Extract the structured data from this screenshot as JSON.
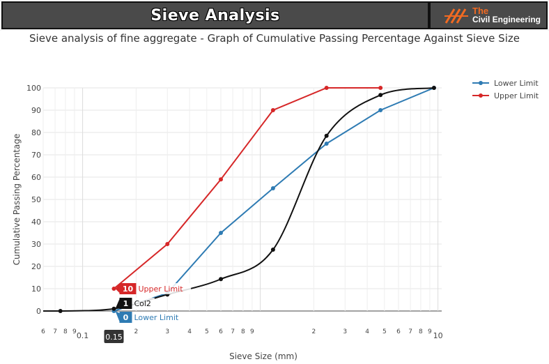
{
  "banner": {
    "title": "Sieve Analysis",
    "logo_the": "The",
    "logo_name": "Civil Engineering",
    "logo_accent": "#f26a21"
  },
  "chart_data": {
    "type": "line",
    "title": "Sieve analysis of fine aggregate - Graph of Cumulative Passing Percentage Against Sieve Size",
    "xlabel": "Sieve Size (mm)",
    "ylabel": "Cumulative Passing Percentage",
    "xscale": "log",
    "xlim": [
      0.06,
      10.5
    ],
    "ylim": [
      0,
      100
    ],
    "y_ticks": [
      0,
      10,
      20,
      30,
      40,
      50,
      60,
      70,
      80,
      90,
      100
    ],
    "x_tick_labels": [
      {
        "value": 0.06,
        "label": "6"
      },
      {
        "value": 0.07,
        "label": "7"
      },
      {
        "value": 0.08,
        "label": "8"
      },
      {
        "value": 0.09,
        "label": "9"
      },
      {
        "value": 0.1,
        "label": "0.1"
      },
      {
        "value": 0.2,
        "label": "2"
      },
      {
        "value": 0.3,
        "label": "3"
      },
      {
        "value": 0.4,
        "label": "4"
      },
      {
        "value": 0.5,
        "label": "5"
      },
      {
        "value": 0.6,
        "label": "6"
      },
      {
        "value": 0.7,
        "label": "7"
      },
      {
        "value": 0.8,
        "label": "8"
      },
      {
        "value": 0.9,
        "label": "9"
      },
      {
        "value": 2,
        "label": "2"
      },
      {
        "value": 3,
        "label": "3"
      },
      {
        "value": 4,
        "label": "4"
      },
      {
        "value": 5,
        "label": "5"
      },
      {
        "value": 6,
        "label": "6"
      },
      {
        "value": 7,
        "label": "7"
      },
      {
        "value": 8,
        "label": "8"
      },
      {
        "value": 9,
        "label": "9"
      },
      {
        "value": 10,
        "label": "10"
      }
    ],
    "grid": true,
    "legend_position": "top-right",
    "series": [
      {
        "name": "Lower Limit",
        "color": "#2e7bb3",
        "smooth": false,
        "show_in_legend": true,
        "points": [
          [
            0.15,
            0
          ],
          [
            0.3,
            8
          ],
          [
            0.6,
            35
          ],
          [
            1.18,
            55
          ],
          [
            2.36,
            75
          ],
          [
            4.75,
            90
          ],
          [
            9.5,
            100
          ]
        ]
      },
      {
        "name": "Upper Limit",
        "color": "#d62728",
        "smooth": false,
        "show_in_legend": true,
        "points": [
          [
            0.15,
            10
          ],
          [
            0.3,
            30
          ],
          [
            0.6,
            59
          ],
          [
            1.18,
            90
          ],
          [
            2.36,
            100
          ],
          [
            4.75,
            100
          ]
        ]
      },
      {
        "name": "Col2",
        "color": "#111111",
        "smooth": true,
        "show_in_legend": false,
        "points": [
          [
            0.075,
            0
          ],
          [
            0.15,
            1
          ],
          [
            0.3,
            7.4
          ],
          [
            0.6,
            14.3
          ],
          [
            1.18,
            27.5
          ],
          [
            2.36,
            78.5
          ],
          [
            4.75,
            96.8
          ],
          [
            9.5,
            100
          ]
        ]
      }
    ],
    "hover": {
      "x_label": "0.15",
      "labels": [
        {
          "series": "Upper Limit",
          "value": "10",
          "text": "Upper Limit",
          "color": "#d62728",
          "y": 10
        },
        {
          "series": "Col2",
          "value": "1",
          "text": "Col2",
          "color": "#111111",
          "y": 1
        },
        {
          "series": "Lower Limit",
          "value": "0",
          "text": "Lower Limit",
          "color": "#2e7bb3",
          "y": 0
        }
      ]
    }
  }
}
